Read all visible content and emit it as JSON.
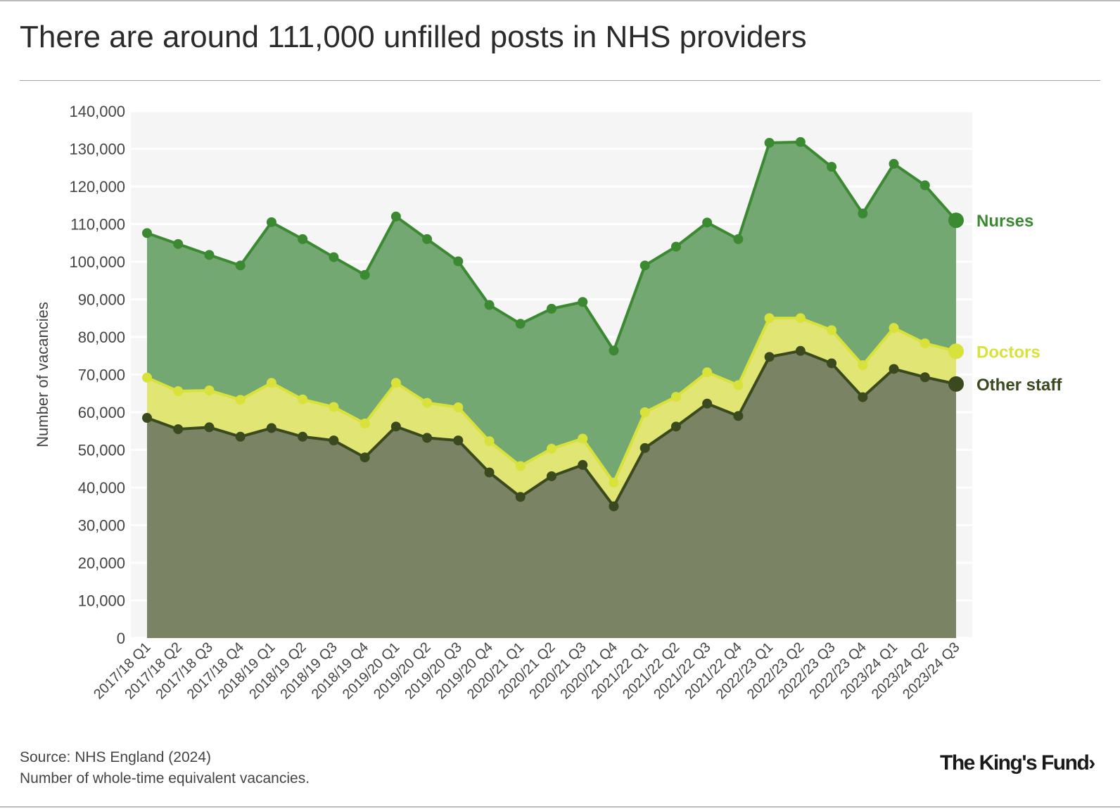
{
  "title": "There are around 111,000 unfilled posts in NHS providers",
  "source_line": "Source: NHS England (2024)",
  "note_line": "Number of whole-time equivalent vacancies.",
  "logo_text": "The King's Fund",
  "logo_chevron": "›",
  "chart_data": {
    "type": "area",
    "stacked": true,
    "ylabel": "Number of vacancies",
    "ylim": [
      0,
      140000
    ],
    "yticks": [
      0,
      10000,
      20000,
      30000,
      40000,
      50000,
      60000,
      70000,
      80000,
      90000,
      100000,
      110000,
      120000,
      130000,
      140000
    ],
    "ytick_labels": [
      "0",
      "10,000",
      "20,000",
      "30,000",
      "40,000",
      "50,000",
      "60,000",
      "70,000",
      "80,000",
      "90,000",
      "100,000",
      "110,000",
      "120,000",
      "130,000",
      "140,000"
    ],
    "grid": "horizontal",
    "legend_placement": "right end labels",
    "categories": [
      "2017/18 Q1",
      "2017/18 Q2",
      "2017/18 Q3",
      "2017/18 Q4",
      "2018/19 Q1",
      "2018/19 Q2",
      "2018/19 Q3",
      "2018/19 Q4",
      "2019/20 Q1",
      "2019/20 Q2",
      "2019/20 Q3",
      "2019/20 Q4",
      "2020/21 Q1",
      "2020/21 Q2",
      "2020/21 Q3",
      "2020/21 Q4",
      "2021/22 Q1",
      "2021/22 Q2",
      "2021/22 Q3",
      "2021/22 Q4",
      "2022/23 Q1",
      "2022/23 Q2",
      "2022/23 Q3",
      "2022/23 Q4",
      "2023/24 Q1",
      "2023/24 Q2",
      "2023/24 Q3"
    ],
    "series_cumulative": [
      {
        "name": "Other staff",
        "color": "#3a4a1e",
        "fill": "#7a8464",
        "values": [
          58500,
          55500,
          56000,
          53500,
          55800,
          53500,
          52500,
          48000,
          56200,
          53200,
          52500,
          44000,
          37500,
          43000,
          46000,
          35000,
          50500,
          56200,
          62300,
          59000,
          74700,
          76300,
          73000,
          64000,
          71500,
          69300,
          67500
        ]
      },
      {
        "name": "Doctors",
        "color": "#d8e23a",
        "fill": "#e1e574",
        "values": [
          69200,
          65600,
          65800,
          63300,
          67800,
          63400,
          61400,
          57000,
          67800,
          62500,
          61300,
          52300,
          45700,
          50300,
          53000,
          41300,
          60000,
          64100,
          70600,
          67200,
          85000,
          85000,
          81800,
          72500,
          82400,
          78300,
          76200
        ]
      },
      {
        "name": "Nurses",
        "color": "#3b8a32",
        "fill": "#74a873",
        "values": [
          107600,
          104700,
          101800,
          99000,
          110500,
          106000,
          101200,
          96500,
          112000,
          106000,
          100100,
          88500,
          83500,
          87500,
          89300,
          76400,
          99000,
          104000,
          110400,
          106000,
          131600,
          131800,
          125200,
          112800,
          126000,
          120300,
          111000
        ]
      }
    ],
    "end_labels": [
      {
        "name": "Nurses",
        "color": "#3b8a32"
      },
      {
        "name": "Doctors",
        "color": "#d8e23a"
      },
      {
        "name": "Other staff",
        "color": "#3a4a1e"
      }
    ],
    "colors": {
      "plot_bg": "#f5f5f5",
      "gridline": "#ffffff",
      "axis_text": "#444444"
    }
  }
}
